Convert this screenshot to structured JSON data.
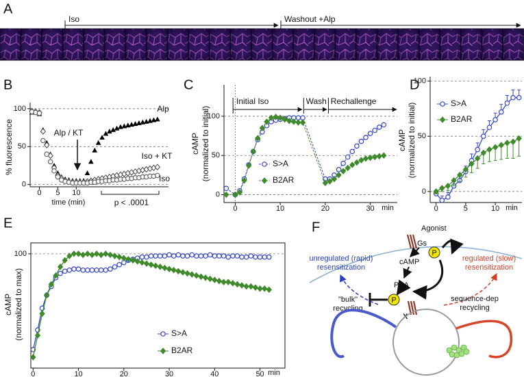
{
  "strip": {
    "panel": "A",
    "labels": [
      "Iso",
      "Washout +Alp"
    ]
  },
  "chart_data": [
    {
      "panel": "B",
      "type": "line",
      "xlabel": "time (min)",
      "ylabel": [
        "% fluorescence"
      ],
      "x": [
        -2,
        -1,
        0,
        1,
        2,
        3,
        4,
        5,
        6,
        7,
        8,
        9,
        10,
        11,
        12,
        13,
        14,
        15,
        16,
        17,
        18,
        19,
        20,
        21,
        22,
        23,
        24,
        25,
        26,
        27,
        28,
        29,
        30,
        31,
        32
      ],
      "xlim": [
        -2.5,
        35
      ],
      "xticks": [
        0,
        5,
        10
      ],
      "ylim": [
        -3,
        108
      ],
      "yticks": [
        0,
        50,
        100
      ],
      "grid": true,
      "legend": "direct",
      "series": [
        {
          "name": "Alp",
          "color": "#000000",
          "marker": "triangle-filled",
          "line": "none",
          "values": [
            95,
            95,
            93,
            72,
            55,
            40,
            25,
            15,
            10,
            7,
            6,
            5,
            5,
            5,
            5,
            15,
            30,
            45,
            55,
            62,
            67,
            70,
            72,
            74,
            76,
            77,
            78,
            79,
            80,
            81,
            82,
            83,
            84,
            85,
            86
          ]
        },
        {
          "name": "Iso + KT",
          "color": "#444444",
          "marker": "diamond-open",
          "line": "none",
          "values": [
            97,
            96,
            95,
            70,
            52,
            38,
            22,
            12,
            8,
            5,
            4,
            3,
            3,
            3,
            3,
            4,
            5,
            6,
            7,
            8,
            9,
            10,
            11,
            12,
            13,
            14,
            15,
            16,
            17,
            18,
            19,
            20,
            21,
            22,
            23
          ]
        },
        {
          "name": "Iso",
          "color": "#666666",
          "marker": "circle-open",
          "line": "none",
          "values": [
            96,
            95,
            94,
            58,
            40,
            30,
            18,
            10,
            6,
            4,
            3,
            2,
            2,
            2,
            2,
            2,
            3,
            3,
            4,
            4,
            5,
            5,
            6,
            6,
            7,
            7,
            8,
            8,
            9,
            9,
            10,
            10,
            11,
            11,
            12
          ]
        }
      ],
      "annotations": [
        "Alp / KT",
        "p < .0001"
      ]
    },
    {
      "panel": "C",
      "type": "line",
      "xlabel": "min",
      "ylabel": [
        "cAMP",
        "(normalized to initial)"
      ],
      "x": [
        -2,
        0,
        1,
        2,
        3,
        4,
        5,
        6,
        7,
        8,
        9,
        10,
        11,
        12,
        13,
        14,
        15,
        20,
        21,
        22,
        23,
        24,
        25,
        26,
        27,
        28,
        29,
        30,
        31,
        32,
        33
      ],
      "xlim": [
        -2.5,
        36
      ],
      "xticks": [
        0,
        10,
        20,
        30
      ],
      "ylim": [
        -10,
        140
      ],
      "yticks": [
        0,
        50,
        100
      ],
      "grid": true,
      "legend": "center",
      "series": [
        {
          "name": "S>A",
          "color": "#3346c4",
          "marker": "circle-open",
          "line": "dashed",
          "values": [
            8,
            0,
            5,
            20,
            38,
            55,
            70,
            80,
            88,
            93,
            95,
            96,
            97,
            98,
            98,
            98,
            98,
            20,
            20,
            25,
            32,
            40,
            48,
            55,
            62,
            68,
            73,
            78,
            82,
            86,
            89
          ]
        },
        {
          "name": "B2AR",
          "color": "#3f8a2a",
          "marker": "diamond-filled",
          "line": "dashed",
          "values": [
            0,
            0,
            3,
            18,
            37,
            55,
            72,
            85,
            93,
            98,
            99,
            98,
            96,
            94,
            93,
            92,
            92,
            15,
            17,
            20,
            25,
            30,
            34,
            38,
            41,
            44,
            46,
            47,
            48,
            49,
            50
          ]
        }
      ],
      "annotations": [
        "Initial Iso",
        "Wash",
        "Rechallenge"
      ]
    },
    {
      "panel": "D",
      "type": "line",
      "xlabel": "min",
      "ylabel": [
        "cAMP",
        "(normalized to initial)"
      ],
      "x": [
        0,
        1,
        2,
        3,
        4,
        5,
        6,
        7,
        8,
        9,
        10,
        11,
        12,
        13,
        14
      ],
      "xlim": [
        -1,
        14.5
      ],
      "xticks": [
        0,
        5,
        10
      ],
      "ylim": [
        -10,
        104
      ],
      "yticks": [
        0,
        50,
        100
      ],
      "grid": true,
      "legend": "upper left",
      "series": [
        {
          "name": "S>A",
          "color": "#3346c4",
          "marker": "circle-open",
          "line": "solid",
          "error_side": "up",
          "values": [
            -2,
            -8,
            -5,
            5,
            10,
            18,
            28,
            38,
            50,
            58,
            65,
            72,
            80,
            85,
            85
          ],
          "errors": [
            3,
            4,
            4,
            5,
            5,
            5,
            6,
            6,
            6,
            6,
            6,
            7,
            7,
            7,
            7
          ]
        },
        {
          "name": "B2AR",
          "color": "#3f8a2a",
          "marker": "diamond-filled",
          "line": "solid",
          "error_side": "down",
          "values": [
            0,
            3,
            5,
            10,
            15,
            20,
            25,
            30,
            35,
            38,
            40,
            42,
            44,
            45,
            48
          ],
          "errors": [
            2,
            3,
            4,
            5,
            6,
            7,
            8,
            9,
            10,
            11,
            12,
            13,
            14,
            15,
            16
          ]
        }
      ]
    },
    {
      "panel": "E",
      "type": "line",
      "xlabel": "min",
      "ylabel": [
        "cAMP",
        "(normalized to max)"
      ],
      "x": [
        0,
        1,
        2,
        3,
        4,
        5,
        6,
        7,
        8,
        9,
        10,
        11,
        12,
        13,
        14,
        15,
        16,
        17,
        18,
        19,
        20,
        21,
        22,
        23,
        24,
        25,
        26,
        27,
        28,
        29,
        30,
        31,
        32,
        33,
        34,
        35,
        36,
        37,
        38,
        39,
        40,
        41,
        42,
        43,
        44,
        45,
        46,
        47,
        48,
        49,
        50,
        51,
        52
      ],
      "xlim": [
        -0.5,
        55.5
      ],
      "xticks": [
        0,
        10,
        20,
        30,
        40,
        50
      ],
      "ylim": [
        -5,
        110
      ],
      "yticks": [
        100
      ],
      "grid": true,
      "legend": "center",
      "series": [
        {
          "name": "S>A",
          "color": "#3346c4",
          "marker": "circle-open",
          "line": "solid",
          "values": [
            12,
            30,
            50,
            62,
            70,
            78,
            82,
            84,
            85,
            86,
            86,
            85,
            85,
            85,
            85,
            85,
            85,
            86,
            88,
            90,
            92,
            94,
            95,
            96,
            97,
            97,
            98,
            98,
            98,
            98,
            99,
            98,
            99,
            98,
            98,
            99,
            98,
            98,
            98,
            99,
            98,
            98,
            98,
            97,
            98,
            98,
            97,
            97,
            98,
            97,
            97,
            97,
            97
          ]
        },
        {
          "name": "B2AR",
          "color": "#3f8a2a",
          "marker": "diamond-filled",
          "line": "solid",
          "values": [
            5,
            25,
            45,
            62,
            72,
            80,
            88,
            94,
            98,
            100,
            100,
            99,
            100,
            99,
            100,
            99,
            100,
            99,
            98,
            97,
            96,
            95,
            94,
            93,
            92,
            91,
            90,
            89,
            88,
            87,
            86,
            85,
            84,
            83,
            82,
            81,
            80,
            79,
            78,
            77,
            76,
            75,
            74,
            74,
            73,
            72,
            71,
            70,
            70,
            69,
            68,
            68,
            67
          ]
        }
      ]
    }
  ],
  "diagram": {
    "panel": "F",
    "agonist": "Agonist",
    "gs": "Gs",
    "camp": "cAMP",
    "pka": "PKA",
    "phospho": "P",
    "block": "X",
    "unregulated": [
      "unregulated (rapid)",
      "resensitization"
    ],
    "regulated": [
      "regulated (slow)",
      "resensitization"
    ],
    "bulk": [
      "\"bulk\"",
      "recycling"
    ],
    "seqdep": [
      "sequence-dep",
      "recycling"
    ]
  }
}
